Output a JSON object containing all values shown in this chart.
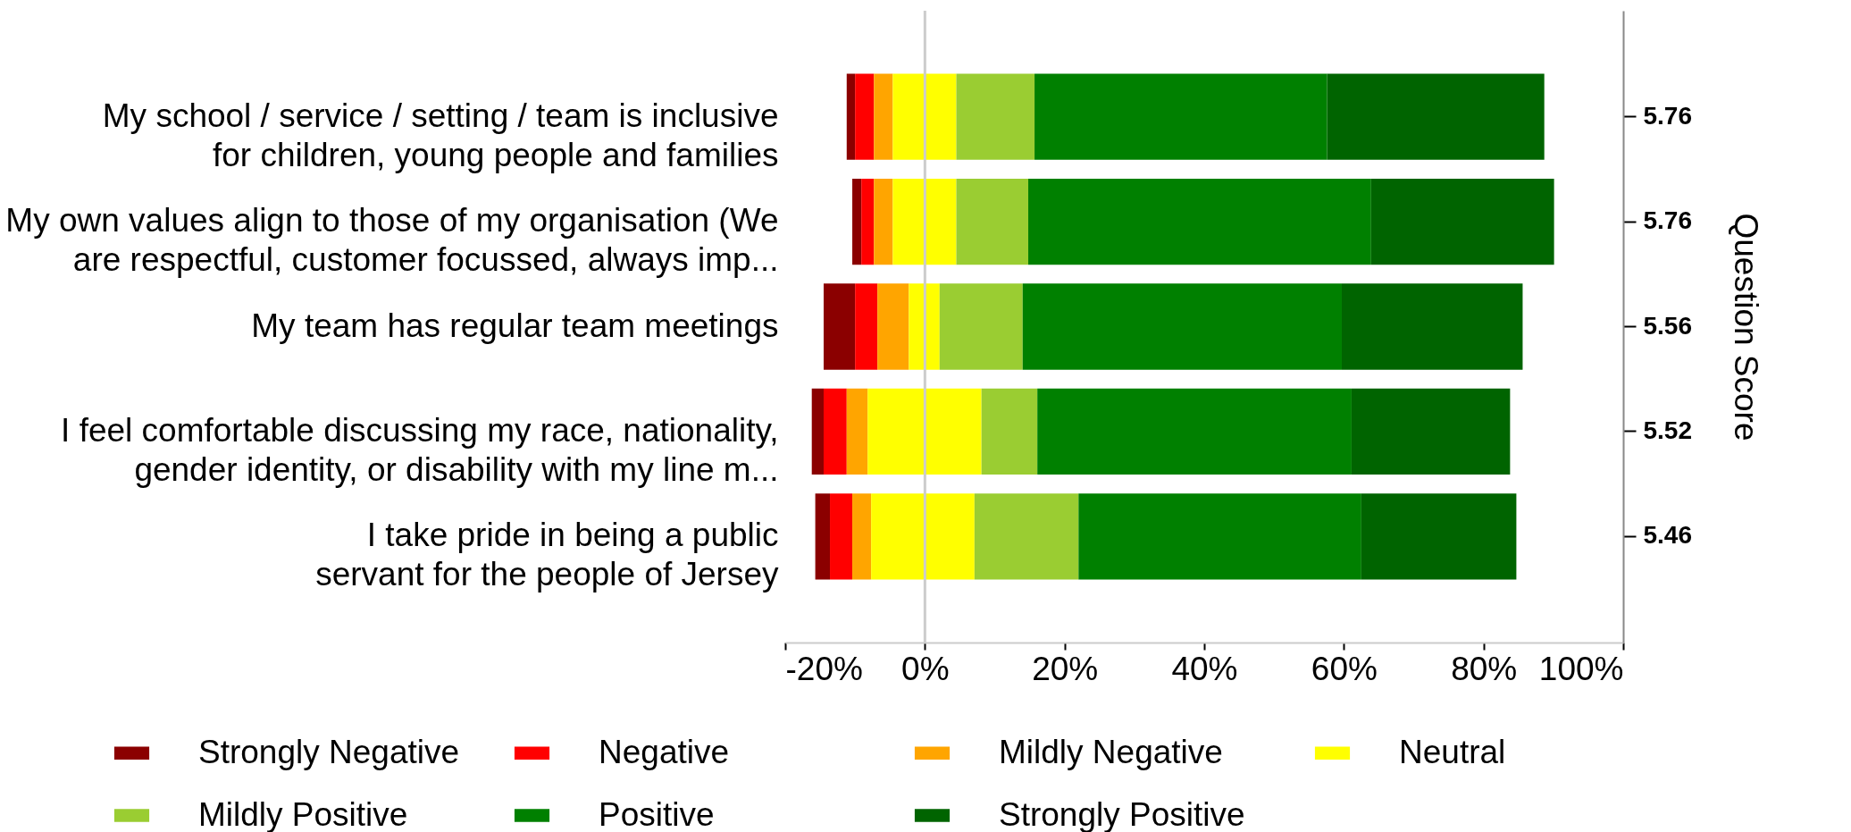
{
  "chart_data": {
    "type": "bar",
    "orientation": "horizontal",
    "categories": [
      "My school / service / setting / team is inclusive\nfor children, young people and families",
      "My own values align to those of my organisation (We\nare respectful, customer focussed, always imp...",
      "My team has regular team meetings",
      "I feel comfortable discussing my race, nationality,\ngender identity, or disability with my line m...",
      "I take pride in being a public\nservant for the people of Jersey"
    ],
    "series": [
      {
        "name": "Strongly Negative",
        "color": "#8b0000",
        "base": [
          -11.2,
          -10.4,
          -14.5,
          -16.2,
          -15.7
        ],
        "values": [
          1.2,
          1.3,
          4.5,
          1.7,
          2.1
        ]
      },
      {
        "name": "Negative",
        "color": "#ff0000",
        "base": [
          -10.0,
          -9.1,
          -10.0,
          -14.5,
          -13.6
        ],
        "values": [
          2.7,
          1.8,
          3.2,
          3.3,
          3.2
        ]
      },
      {
        "name": "Mildly Negative",
        "color": "#ffa500",
        "base": [
          -7.3,
          -7.3,
          -6.8,
          -11.2,
          -10.4
        ],
        "values": [
          2.7,
          2.7,
          4.5,
          3.0,
          2.7
        ]
      },
      {
        "name": "Neutral",
        "color": "#ffff00",
        "base": [
          -4.6,
          -4.6,
          -2.3,
          -8.2,
          -7.7
        ],
        "values": [
          9.1,
          9.1,
          4.4,
          16.3,
          14.8
        ]
      },
      {
        "name": "Mildly Positive",
        "color": "#9acd32",
        "base": [
          4.5,
          4.5,
          2.1,
          8.1,
          7.1
        ],
        "values": [
          11.2,
          10.3,
          11.9,
          8.0,
          14.9
        ]
      },
      {
        "name": "Positive",
        "color": "#008000",
        "base": [
          15.7,
          14.8,
          14.0,
          16.1,
          22.0
        ],
        "values": [
          41.9,
          49.1,
          45.7,
          45.0,
          40.5
        ]
      },
      {
        "name": "Strongly Positive",
        "color": "#006400",
        "base": [
          57.6,
          63.9,
          59.7,
          61.1,
          62.5
        ],
        "values": [
          31.1,
          26.2,
          25.9,
          22.7,
          22.2
        ]
      }
    ],
    "xlim": [
      -20,
      100
    ],
    "xticks": [
      {
        "value": -20,
        "label": "-20%"
      },
      {
        "value": 0,
        "label": "0%"
      },
      {
        "value": 20,
        "label": "20%"
      },
      {
        "value": 40,
        "label": "40%"
      },
      {
        "value": 60,
        "label": "60%"
      },
      {
        "value": 80,
        "label": "80%"
      },
      {
        "value": 100,
        "label": "100%"
      }
    ],
    "y2label": "Question Score",
    "y2_categories": [
      "5.76",
      "5.76",
      "5.56",
      "5.52",
      "5.46"
    ],
    "ref_lines": [
      {
        "axis": "x",
        "value": 0,
        "color": "#cccccc"
      }
    ],
    "legend": "bottom",
    "grid": false
  }
}
